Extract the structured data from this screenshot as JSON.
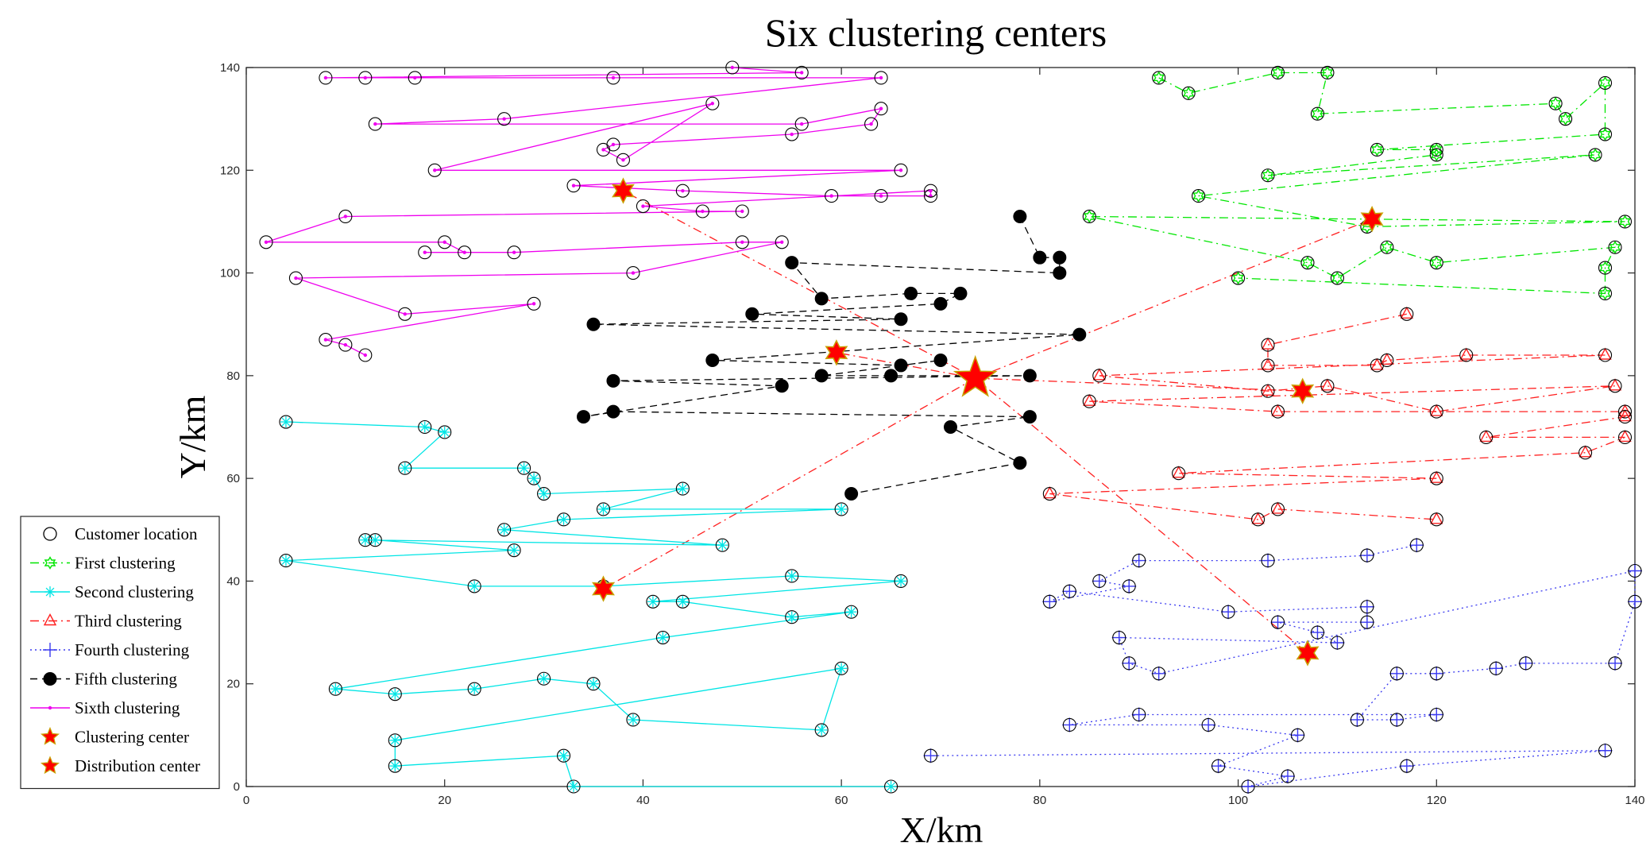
{
  "chart_data": {
    "type": "scatter",
    "title": "Six clustering centers",
    "xlabel": "X/km",
    "ylabel": "Y/km",
    "xlim": [
      0,
      140
    ],
    "ylim": [
      0,
      140
    ],
    "xticks": [
      0,
      20,
      40,
      60,
      80,
      100,
      120,
      140
    ],
    "yticks": [
      0,
      20,
      40,
      60,
      80,
      100,
      120,
      140
    ],
    "grid": false,
    "legend_position": "left-bottom",
    "legend": [
      {
        "label": "Customer location",
        "marker": "circle",
        "color": "#000000",
        "line": "none"
      },
      {
        "label": "First clustering",
        "marker": "hexagram",
        "color": "#00e600",
        "line": "dashdot"
      },
      {
        "label": "Second clustering",
        "marker": "asterisk",
        "color": "#00e5e5",
        "line": "solid"
      },
      {
        "label": "Third clustering",
        "marker": "triangle",
        "color": "#ff2020",
        "line": "dashdot"
      },
      {
        "label": "Fourth clustering",
        "marker": "plus",
        "color": "#3a3af0",
        "line": "dotted"
      },
      {
        "label": "Fifth clustering",
        "marker": "filled-circle",
        "color": "#000000",
        "line": "dashed"
      },
      {
        "label": "Sixth clustering",
        "marker": "dot",
        "color": "#ee00ee",
        "line": "solid"
      },
      {
        "label": "Clustering center",
        "marker": "star",
        "color": "#ff0000",
        "line": "none"
      },
      {
        "label": "Distribution center",
        "marker": "star",
        "color": "#ff0000",
        "line": "none"
      }
    ],
    "distribution_center": {
      "x": 73.5,
      "y": 79.5
    },
    "clusters": [
      {
        "name": "First clustering",
        "color": "#00e600",
        "line": "dashdot",
        "marker": "hexagram",
        "center": {
          "x": 113.5,
          "y": 110.5
        },
        "points": [
          [
            92,
            138
          ],
          [
            95,
            135
          ],
          [
            104,
            139
          ],
          [
            109,
            139
          ],
          [
            108,
            131
          ],
          [
            132,
            133
          ],
          [
            133,
            130
          ],
          [
            137,
            137
          ],
          [
            137,
            127
          ],
          [
            114,
            124
          ],
          [
            120,
            124
          ],
          [
            120,
            123
          ],
          [
            103,
            119
          ],
          [
            136,
            123
          ],
          [
            96,
            115
          ],
          [
            113,
            109
          ],
          [
            139,
            110
          ],
          [
            85,
            111
          ],
          [
            107,
            102
          ],
          [
            110,
            99
          ],
          [
            115,
            105
          ],
          [
            120,
            102
          ],
          [
            138,
            105
          ],
          [
            137,
            101
          ],
          [
            137,
            96
          ],
          [
            100,
            99
          ]
        ]
      },
      {
        "name": "Second clustering",
        "color": "#00e5e5",
        "line": "solid",
        "marker": "asterisk",
        "center": {
          "x": 36,
          "y": 38.5
        },
        "points": [
          [
            4,
            71
          ],
          [
            18,
            70
          ],
          [
            20,
            69
          ],
          [
            16,
            62
          ],
          [
            28,
            62
          ],
          [
            29,
            60
          ],
          [
            30,
            57
          ],
          [
            44,
            58
          ],
          [
            36,
            54
          ],
          [
            60,
            54
          ],
          [
            32,
            52
          ],
          [
            26,
            50
          ],
          [
            48,
            47
          ],
          [
            12,
            48
          ],
          [
            13,
            48
          ],
          [
            27,
            46
          ],
          [
            4,
            44
          ],
          [
            23,
            39
          ],
          [
            36,
            39
          ],
          [
            55,
            41
          ],
          [
            66,
            40
          ],
          [
            41,
            36
          ],
          [
            44,
            36
          ],
          [
            55,
            33
          ],
          [
            61,
            34
          ],
          [
            42,
            29
          ],
          [
            9,
            19
          ],
          [
            15,
            18
          ],
          [
            23,
            19
          ],
          [
            30,
            21
          ],
          [
            35,
            20
          ],
          [
            39,
            13
          ],
          [
            58,
            11
          ],
          [
            60,
            23
          ],
          [
            15,
            9
          ],
          [
            15,
            4
          ],
          [
            32,
            6
          ],
          [
            33,
            0
          ],
          [
            65,
            0
          ]
        ]
      },
      {
        "name": "Third clustering",
        "color": "#ff2020",
        "line": "dashdot",
        "marker": "triangle",
        "center": {
          "x": 106.5,
          "y": 77
        },
        "points": [
          [
            117,
            92
          ],
          [
            103,
            86
          ],
          [
            103,
            82
          ],
          [
            114,
            82
          ],
          [
            115,
            83
          ],
          [
            123,
            84
          ],
          [
            137,
            84
          ],
          [
            86,
            80
          ],
          [
            103,
            77
          ],
          [
            109,
            78
          ],
          [
            120,
            73
          ],
          [
            138,
            78
          ],
          [
            85,
            75
          ],
          [
            104,
            73
          ],
          [
            139,
            73
          ],
          [
            139,
            72
          ],
          [
            125,
            68
          ],
          [
            139,
            68
          ],
          [
            135,
            65
          ],
          [
            94,
            61
          ],
          [
            120,
            60
          ],
          [
            81,
            57
          ],
          [
            102,
            52
          ],
          [
            104,
            54
          ],
          [
            120,
            52
          ]
        ]
      },
      {
        "name": "Fourth clustering",
        "color": "#3a3af0",
        "line": "dotted",
        "marker": "plus",
        "center": {
          "x": 107,
          "y": 26
        },
        "points": [
          [
            118,
            47
          ],
          [
            113,
            45
          ],
          [
            103,
            44
          ],
          [
            90,
            44
          ],
          [
            86,
            40
          ],
          [
            89,
            39
          ],
          [
            81,
            36
          ],
          [
            83,
            38
          ],
          [
            99,
            34
          ],
          [
            113,
            35
          ],
          [
            113,
            32
          ],
          [
            104,
            32
          ],
          [
            108,
            30
          ],
          [
            110,
            28
          ],
          [
            88,
            29
          ],
          [
            89,
            24
          ],
          [
            92,
            22
          ],
          [
            140,
            42
          ],
          [
            140,
            36
          ],
          [
            138,
            24
          ],
          [
            129,
            24
          ],
          [
            126,
            23
          ],
          [
            120,
            22
          ],
          [
            116,
            22
          ],
          [
            112,
            13
          ],
          [
            116,
            13
          ],
          [
            120,
            14
          ],
          [
            90,
            14
          ],
          [
            83,
            12
          ],
          [
            97,
            12
          ],
          [
            106,
            10
          ],
          [
            98,
            4
          ],
          [
            105,
            2
          ],
          [
            101,
            0
          ],
          [
            117,
            4
          ],
          [
            137,
            7
          ],
          [
            69,
            6
          ]
        ]
      },
      {
        "name": "Fifth clustering",
        "color": "#000000",
        "line": "dashed",
        "marker": "filled-circle",
        "center": {
          "x": 59.5,
          "y": 84.5
        },
        "points": [
          [
            78,
            111
          ],
          [
            80,
            103
          ],
          [
            82,
            103
          ],
          [
            82,
            100
          ],
          [
            55,
            102
          ],
          [
            58,
            95
          ],
          [
            67,
            96
          ],
          [
            72,
            96
          ],
          [
            70,
            94
          ],
          [
            51,
            92
          ],
          [
            66,
            91
          ],
          [
            35,
            90
          ],
          [
            84,
            88
          ],
          [
            47,
            83
          ],
          [
            66,
            82
          ],
          [
            70,
            83
          ],
          [
            58,
            80
          ],
          [
            65,
            80
          ],
          [
            79,
            80
          ],
          [
            37,
            79
          ],
          [
            54,
            78
          ],
          [
            34,
            72
          ],
          [
            37,
            73
          ],
          [
            79,
            72
          ],
          [
            71,
            70
          ],
          [
            78,
            63
          ],
          [
            61,
            57
          ]
        ]
      },
      {
        "name": "Sixth clustering",
        "color": "#ee00ee",
        "line": "solid",
        "marker": "dot",
        "center": {
          "x": 38,
          "y": 116
        },
        "points": [
          [
            49,
            140
          ],
          [
            56,
            139
          ],
          [
            8,
            138
          ],
          [
            12,
            138
          ],
          [
            17,
            138
          ],
          [
            37,
            138
          ],
          [
            64,
            138
          ],
          [
            26,
            130
          ],
          [
            13,
            129
          ],
          [
            56,
            129
          ],
          [
            64,
            132
          ],
          [
            63,
            129
          ],
          [
            55,
            127
          ],
          [
            37,
            125
          ],
          [
            36,
            124
          ],
          [
            38,
            122
          ],
          [
            47,
            133
          ],
          [
            19,
            120
          ],
          [
            66,
            120
          ],
          [
            33,
            117
          ],
          [
            44,
            116
          ],
          [
            59,
            115
          ],
          [
            64,
            115
          ],
          [
            69,
            115
          ],
          [
            69,
            116
          ],
          [
            40,
            113
          ],
          [
            46,
            112
          ],
          [
            50,
            112
          ],
          [
            10,
            111
          ],
          [
            2,
            106
          ],
          [
            20,
            106
          ],
          [
            22,
            104
          ],
          [
            18,
            104
          ],
          [
            27,
            104
          ],
          [
            50,
            106
          ],
          [
            54,
            106
          ],
          [
            39,
            100
          ],
          [
            5,
            99
          ],
          [
            16,
            92
          ],
          [
            29,
            94
          ],
          [
            8,
            87
          ],
          [
            10,
            86
          ],
          [
            12,
            84
          ]
        ]
      }
    ]
  }
}
